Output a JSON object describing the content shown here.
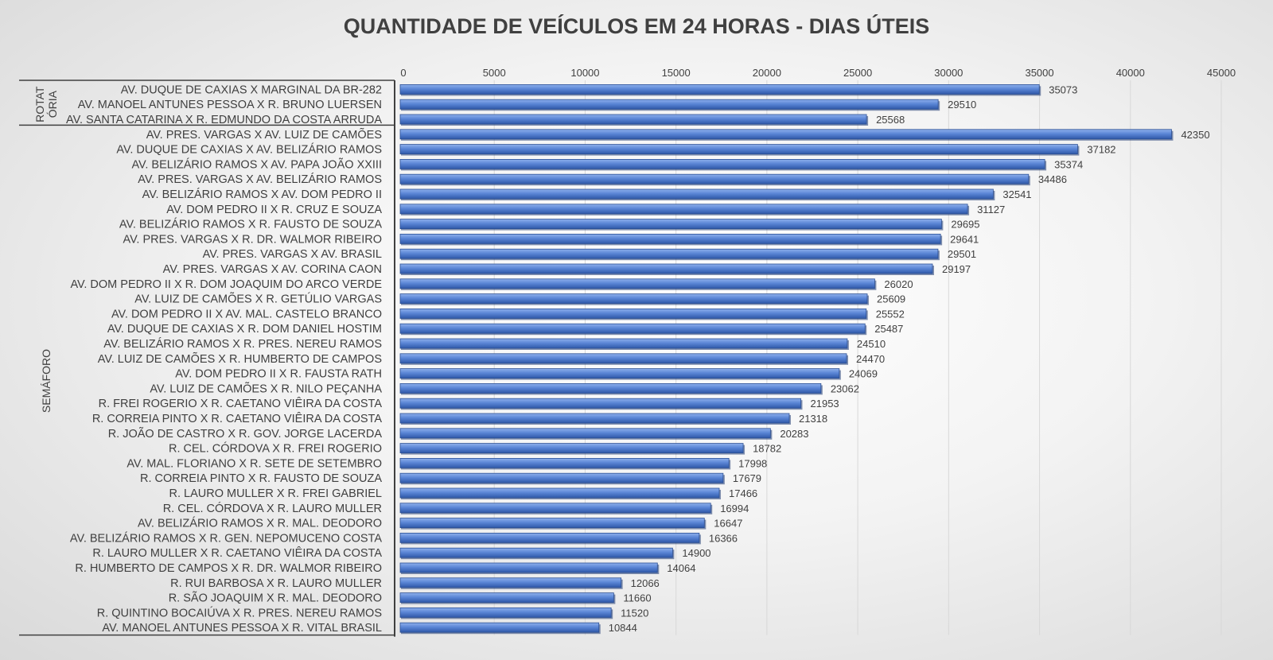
{
  "chart_data": {
    "type": "bar",
    "orientation": "horizontal",
    "title": "QUANTIDADE DE VEÍCULOS EM 24 HORAS - DIAS ÚTEIS",
    "xlim": [
      0,
      45000
    ],
    "x_ticks": [
      "0",
      "5000",
      "10000",
      "15000",
      "20000",
      "25000",
      "30000",
      "35000",
      "40000",
      "45000"
    ],
    "x_axis_position": "top",
    "grid": true,
    "bar_color": "#4472c4",
    "groups": [
      {
        "label_lines": [
          "ROTAT",
          "ÓRIA"
        ],
        "count": 3
      },
      {
        "label_lines": [
          "SEMÁFORO"
        ],
        "count": 34
      }
    ],
    "categories": [
      "AV. DUQUE DE CAXIAS X MARGINAL DA BR-282",
      "AV. MANOEL ANTUNES PESSOA X R. BRUNO LUERSEN",
      "AV. SANTA CATARINA X R. EDMUNDO DA COSTA ARRUDA",
      "AV. PRES. VARGAS X AV. LUIZ DE CAMÕES",
      "AV. DUQUE DE CAXIAS X AV. BELIZÁRIO RAMOS",
      "AV. BELIZÁRIO RAMOS X AV. PAPA JOÃO XXIII",
      "AV. PRES. VARGAS X AV. BELIZÁRIO RAMOS",
      "AV. BELIZÁRIO RAMOS X AV. DOM PEDRO II",
      "AV. DOM PEDRO II X R. CRUZ E SOUZA",
      "AV. BELIZÁRIO RAMOS X R. FAUSTO DE SOUZA",
      "AV. PRES. VARGAS X R. DR. WALMOR RIBEIRO",
      "AV. PRES. VARGAS X AV. BRASIL",
      "AV. PRES. VARGAS X AV. CORINA CAON",
      "AV. DOM PEDRO II X R. DOM JOAQUIM DO ARCO VERDE",
      "AV. LUIZ DE CAMÕES X R. GETÚLIO VARGAS",
      "AV. DOM PEDRO II X AV. MAL. CASTELO BRANCO",
      "AV. DUQUE DE CAXIAS X R. DOM DANIEL HOSTIM",
      "AV. BELIZÁRIO RAMOS X R. PRES. NEREU RAMOS",
      "AV. LUIZ DE CAMÕES X R. HUMBERTO DE CAMPOS",
      "AV. DOM PEDRO II X R. FAUSTA RATH",
      "AV. LUIZ DE CAMÕES X R. NILO PEÇANHA",
      "R. FREI ROGERIO X R. CAETANO VIÊIRA DA COSTA",
      "R. CORREIA PINTO X R. CAETANO VIÊIRA DA COSTA",
      "R. JOÃO DE CASTRO X R. GOV. JORGE LACERDA",
      "R. CEL. CÓRDOVA X R. FREI ROGERIO",
      "AV. MAL. FLORIANO X R. SETE DE SETEMBRO",
      "R. CORREIA PINTO X R. FAUSTO DE SOUZA",
      "R. LAURO MULLER X R. FREI GABRIEL",
      "R. CEL. CÓRDOVA X R. LAURO MULLER",
      "AV. BELIZÁRIO RAMOS X R. MAL. DEODORO",
      "AV. BELIZÁRIO RAMOS X R. GEN. NEPOMUCENO COSTA",
      "R. LAURO MULLER X R. CAETANO VIÊIRA DA COSTA",
      "R. HUMBERTO DE CAMPOS X R. DR. WALMOR RIBEIRO",
      "R. RUI BARBOSA X R. LAURO MULLER",
      "R. SÃO JOAQUIM X R. MAL. DEODORO",
      "R. QUINTINO BOCAIÚVA X R. PRES. NEREU RAMOS",
      "AV. MANOEL ANTUNES PESSOA X R. VITAL BRASIL"
    ],
    "values": [
      35073,
      29510,
      25568,
      42350,
      37182,
      35374,
      34486,
      32541,
      31127,
      29695,
      29641,
      29501,
      29197,
      26020,
      25609,
      25552,
      25487,
      24510,
      24470,
      24069,
      23062,
      21953,
      21318,
      20283,
      18782,
      17998,
      17679,
      17466,
      16994,
      16647,
      16366,
      14900,
      14064,
      12066,
      11660,
      11520,
      10844
    ]
  }
}
